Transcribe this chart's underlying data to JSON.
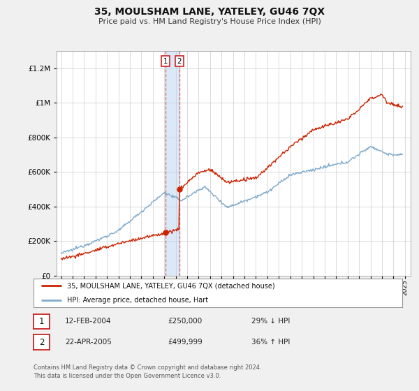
{
  "title": "35, MOULSHAM LANE, YATELEY, GU46 7QX",
  "subtitle": "Price paid vs. HM Land Registry's House Price Index (HPI)",
  "legend_line1": "35, MOULSHAM LANE, YATELEY, GU46 7QX (detached house)",
  "legend_line2": "HPI: Average price, detached house, Hart",
  "t1_year": 2004.1,
  "t1_price": 250000,
  "t2_year": 2005.33,
  "t2_price": 499999,
  "footer": "Contains HM Land Registry data © Crown copyright and database right 2024.\nThis data is licensed under the Open Government Licence v3.0.",
  "background_color": "#f0f0f0",
  "plot_bg": "#ffffff",
  "red_color": "#cc2200",
  "blue_color": "#7faacc",
  "ylim_max": 1300000,
  "xlim_start": 1994.6,
  "xlim_end": 2025.5
}
